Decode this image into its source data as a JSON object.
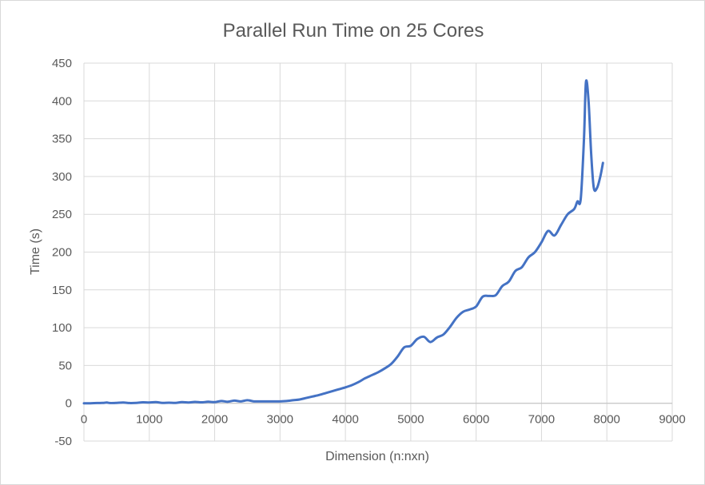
{
  "chart_data": {
    "type": "line",
    "title": "Parallel Run Time on 25 Cores",
    "xlabel": "Dimension (n:nxn)",
    "ylabel": "Time (s)",
    "xlim": [
      0,
      9000
    ],
    "ylim": [
      -50,
      450
    ],
    "xticks": [
      0,
      1000,
      2000,
      3000,
      4000,
      5000,
      6000,
      7000,
      8000,
      9000
    ],
    "yticks": [
      -50,
      0,
      50,
      100,
      150,
      200,
      250,
      300,
      350,
      400,
      450
    ],
    "grid": true,
    "legend": "none",
    "series": [
      {
        "color": "#4472c4",
        "points": [
          [
            0,
            0
          ],
          [
            100,
            0
          ],
          [
            200,
            0.3
          ],
          [
            300,
            0.5
          ],
          [
            350,
            1
          ],
          [
            400,
            0.3
          ],
          [
            500,
            0.5
          ],
          [
            600,
            1
          ],
          [
            700,
            0.3
          ],
          [
            800,
            0.5
          ],
          [
            900,
            1.2
          ],
          [
            1000,
            1
          ],
          [
            1100,
            1.5
          ],
          [
            1200,
            0.5
          ],
          [
            1300,
            0.8
          ],
          [
            1400,
            0.5
          ],
          [
            1500,
            1.5
          ],
          [
            1600,
            1
          ],
          [
            1700,
            1.8
          ],
          [
            1800,
            1.2
          ],
          [
            1900,
            2
          ],
          [
            2000,
            1.5
          ],
          [
            2100,
            3
          ],
          [
            2200,
            2
          ],
          [
            2300,
            3.5
          ],
          [
            2400,
            2.5
          ],
          [
            2500,
            4
          ],
          [
            2600,
            2.5
          ],
          [
            2700,
            2.5
          ],
          [
            2800,
            2.5
          ],
          [
            2900,
            2.5
          ],
          [
            3000,
            2.5
          ],
          [
            3100,
            3
          ],
          [
            3200,
            4
          ],
          [
            3300,
            5
          ],
          [
            3400,
            7
          ],
          [
            3500,
            9
          ],
          [
            3600,
            11
          ],
          [
            3700,
            13.5
          ],
          [
            3800,
            16
          ],
          [
            3900,
            18.5
          ],
          [
            4000,
            21
          ],
          [
            4100,
            24
          ],
          [
            4200,
            28
          ],
          [
            4300,
            33
          ],
          [
            4400,
            37
          ],
          [
            4500,
            41
          ],
          [
            4600,
            46
          ],
          [
            4700,
            52
          ],
          [
            4800,
            62
          ],
          [
            4900,
            74
          ],
          [
            5000,
            76
          ],
          [
            5100,
            85
          ],
          [
            5200,
            88
          ],
          [
            5300,
            81
          ],
          [
            5400,
            87
          ],
          [
            5500,
            91
          ],
          [
            5600,
            101
          ],
          [
            5700,
            113
          ],
          [
            5800,
            121
          ],
          [
            5900,
            124
          ],
          [
            6000,
            128
          ],
          [
            6100,
            141
          ],
          [
            6200,
            142
          ],
          [
            6300,
            143
          ],
          [
            6400,
            155
          ],
          [
            6500,
            161
          ],
          [
            6600,
            175
          ],
          [
            6700,
            180
          ],
          [
            6800,
            193
          ],
          [
            6900,
            200
          ],
          [
            7000,
            213
          ],
          [
            7100,
            228
          ],
          [
            7200,
            222
          ],
          [
            7300,
            236
          ],
          [
            7400,
            250
          ],
          [
            7500,
            257
          ],
          [
            7550,
            267
          ],
          [
            7600,
            270
          ],
          [
            7650,
            350
          ],
          [
            7680,
            425
          ],
          [
            7720,
            400
          ],
          [
            7760,
            330
          ],
          [
            7800,
            285
          ],
          [
            7850,
            285
          ],
          [
            7900,
            300
          ],
          [
            7940,
            318
          ]
        ]
      }
    ]
  }
}
